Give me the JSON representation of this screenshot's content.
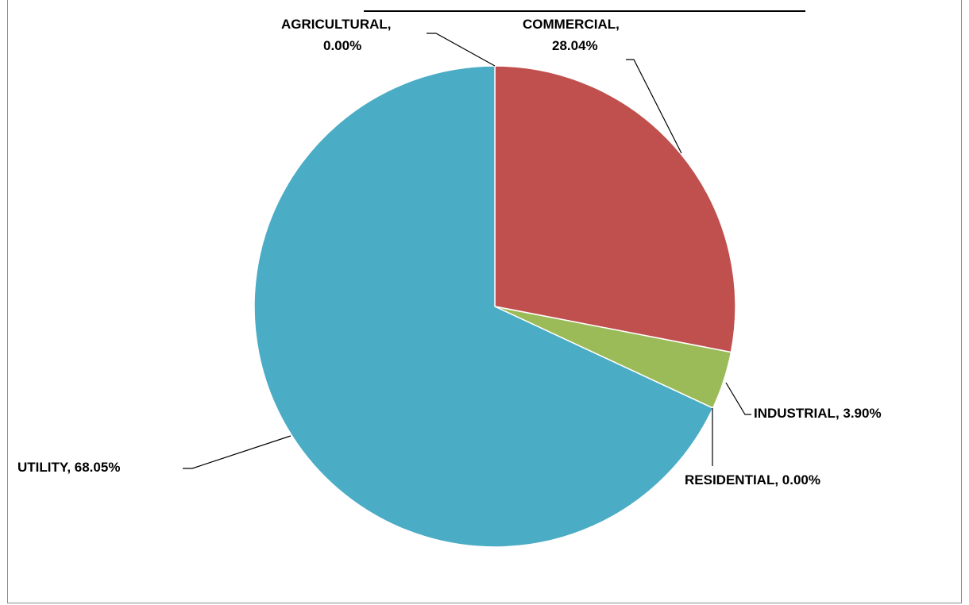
{
  "chart_data": {
    "type": "pie",
    "title": "",
    "slices": [
      {
        "name": "COMMERCIAL",
        "value": 28.04,
        "label": "COMMERCIAL,",
        "value_label": "28.04%",
        "color": "#C0504D"
      },
      {
        "name": "INDUSTRIAL",
        "value": 3.9,
        "label": "INDUSTRIAL, 3.90%",
        "value_label": "",
        "color": "#9BBB59"
      },
      {
        "name": "RESIDENTIAL",
        "value": 0.0,
        "label": "RESIDENTIAL, 0.00%",
        "value_label": "",
        "color": "#8064A2"
      },
      {
        "name": "UTILITY",
        "value": 68.05,
        "label": "UTILITY, 68.05%",
        "value_label": "",
        "color": "#4BACC6"
      },
      {
        "name": "AGRICULTURAL",
        "value": 0.0,
        "label": "AGRICULTURAL,",
        "value_label": "0.00%",
        "color": "#4F81BD"
      }
    ],
    "start_angle": "12 o'clock",
    "direction": "clockwise",
    "legend": "none",
    "label_position": "outside-with-leader-lines"
  }
}
